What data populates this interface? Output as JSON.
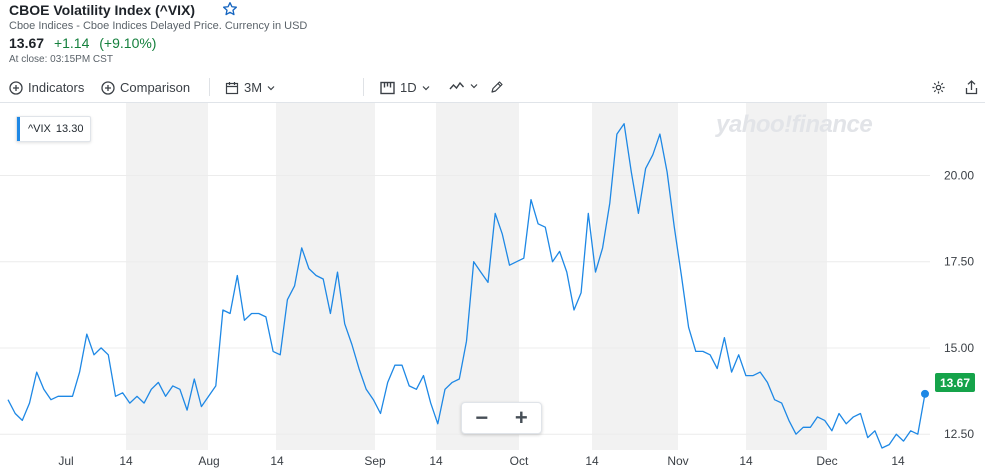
{
  "header": {
    "title": "CBOE Volatility Index (^VIX)",
    "subtitle": "Cboe Indices - Cboe Indices Delayed Price. Currency in USD",
    "price": "13.67",
    "change": "+1.14",
    "change_pct": "(+9.10%)",
    "close_time": "At close: 03:15PM CST",
    "watchlist_icon": "star-icon"
  },
  "toolbar": {
    "indicators": "Indicators",
    "comparison": "Comparison",
    "range": "3M",
    "interval": "1D"
  },
  "legend": {
    "symbol": "^VIX",
    "value": "13.30"
  },
  "watermark": "yahoo!finance",
  "last_price_label": "13.67",
  "colors": {
    "line": "#1e88e5",
    "up": "#15a34a",
    "shade": "#f2f2f2"
  },
  "chart_data": {
    "type": "line",
    "series": [
      {
        "name": "^VIX",
        "values": [
          13.5,
          13.1,
          12.9,
          13.4,
          14.3,
          13.8,
          13.5,
          13.6,
          13.6,
          13.6,
          14.3,
          15.4,
          14.8,
          15.0,
          14.8,
          13.6,
          13.7,
          13.4,
          13.6,
          13.4,
          13.8,
          14.0,
          13.6,
          13.9,
          13.8,
          13.2,
          14.1,
          13.3,
          13.6,
          13.9,
          16.1,
          16.0,
          17.1,
          15.8,
          16.0,
          16.0,
          15.9,
          14.9,
          14.8,
          16.4,
          16.8,
          17.9,
          17.3,
          17.1,
          17.0,
          16.0,
          17.2,
          15.7,
          15.1,
          14.4,
          13.8,
          13.5,
          13.1,
          14.0,
          14.5,
          14.5,
          13.9,
          13.8,
          14.2,
          13.4,
          12.8,
          13.8,
          14.0,
          14.1,
          15.2,
          17.5,
          17.2,
          16.9,
          18.9,
          18.3,
          17.4,
          17.5,
          17.6,
          19.3,
          18.6,
          18.5,
          17.5,
          17.8,
          17.2,
          16.1,
          16.6,
          18.9,
          17.2,
          17.9,
          19.2,
          21.2,
          21.5,
          20.1,
          18.9,
          20.2,
          20.6,
          21.2,
          20.1,
          18.5,
          17.1,
          15.6,
          14.9,
          14.9,
          14.8,
          14.4,
          15.3,
          14.3,
          14.8,
          14.2,
          14.2,
          14.3,
          14.0,
          13.5,
          13.4,
          12.9,
          12.5,
          12.7,
          12.7,
          13.0,
          12.9,
          12.6,
          13.1,
          12.8,
          13.0,
          13.1,
          12.4,
          12.6,
          12.1,
          12.2,
          12.5,
          12.3,
          12.6,
          12.5,
          13.67
        ]
      }
    ],
    "x_ticks": [
      "Jul",
      "14",
      "Aug",
      "14",
      "Sep",
      "14",
      "Oct",
      "14",
      "Nov",
      "14",
      "Dec",
      "14"
    ],
    "y_ticks": [
      "12.50",
      "15.00",
      "17.50",
      "20.00"
    ],
    "ylim": [
      12.1,
      22.1
    ],
    "grid": true
  }
}
